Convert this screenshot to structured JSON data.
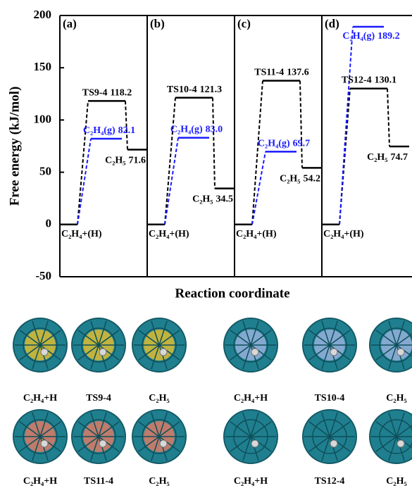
{
  "chart_data": {
    "type": "energy-diagram",
    "ylabel": "Free energy (kJ/mol)",
    "xlabel": "Reaction coordinate",
    "ylim": [
      -50,
      200
    ],
    "yticks": [
      -50,
      0,
      50,
      100,
      150,
      200
    ],
    "color": "#000000",
    "gas_color": "#1a1aff",
    "panels": [
      {
        "label": "(a)",
        "states": [
          "C₂H₄+(H)",
          "TS9-4",
          "C₂H₅",
          "C₂H₄(g)"
        ],
        "values": [
          0,
          118.2,
          71.6,
          82.1
        ]
      },
      {
        "label": "(b)",
        "states": [
          "C₂H₄+(H)",
          "TS10-4",
          "C₂H₅",
          "C₂H₄(g)"
        ],
        "values": [
          0,
          121.3,
          34.5,
          83.0
        ],
        "value_labels": [
          null,
          "121.3",
          "34.5",
          "83.0"
        ]
      },
      {
        "label": "(c)",
        "states": [
          "C₂H₄+(H)",
          "TS11-4",
          "C₂H₅",
          "C₂H₄(g)"
        ],
        "values": [
          0,
          137.6,
          54.2,
          69.7
        ]
      },
      {
        "label": "(d)",
        "states": [
          "C₂H₄+(H)",
          "TS12-4",
          "C₂H₅",
          "C₂H₄(g)"
        ],
        "values": [
          0,
          130.1,
          74.7,
          189.2
        ]
      }
    ]
  },
  "structures": [
    [
      "C₂H₄+H",
      "TS9-4",
      "C₂H₅",
      "C₂H₄+H",
      "TS10-4",
      "C₂H₅"
    ],
    [
      "C₂H₄+H",
      "TS11-4",
      "C₂H₅",
      "C₂H₄+H",
      "TS12-4",
      "C₂H₅"
    ]
  ]
}
